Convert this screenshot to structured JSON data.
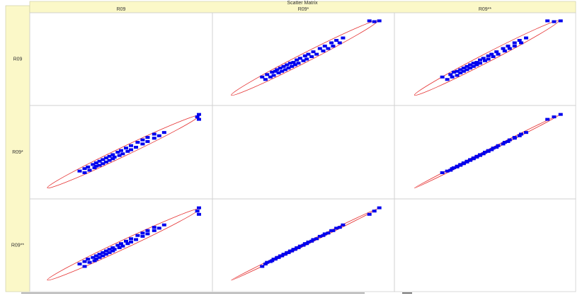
{
  "chart_data": {
    "type": "scatter_matrix",
    "title": "Scatter Matrix",
    "lim": [
      0,
      100
    ],
    "point_color": "#0000ee",
    "ellipse_color": "#e53030",
    "variables": [
      {
        "name": "R09",
        "values": [
          28,
          25,
          31,
          28,
          34,
          30,
          35,
          37,
          33,
          39,
          35,
          41,
          37,
          43,
          39,
          45,
          41,
          46,
          43,
          49,
          45,
          51,
          48,
          54,
          50,
          56,
          53,
          59,
          56,
          63,
          60,
          66,
          63,
          70,
          66,
          73,
          70,
          76,
          97,
          96,
          97
        ]
      },
      {
        "name": "R09*",
        "values": [
          25,
          27,
          28,
          30,
          31,
          32,
          33,
          34,
          35,
          36,
          37,
          38,
          39,
          40,
          41,
          42,
          43,
          44,
          45,
          46,
          47,
          48,
          50,
          51,
          52,
          53,
          55,
          56,
          58,
          60,
          62,
          63,
          65,
          67,
          68,
          70,
          72,
          74,
          90,
          93,
          96
        ]
      },
      {
        "name": "R09**",
        "values": [
          24,
          27,
          29,
          30,
          31,
          33,
          33,
          35,
          35,
          37,
          37,
          39,
          39,
          41,
          41,
          43,
          43,
          45,
          45,
          47,
          47,
          49,
          50,
          52,
          52,
          54,
          55,
          57,
          58,
          61,
          62,
          64,
          65,
          68,
          68,
          71,
          72,
          75,
          88,
          92,
          96
        ]
      }
    ]
  }
}
